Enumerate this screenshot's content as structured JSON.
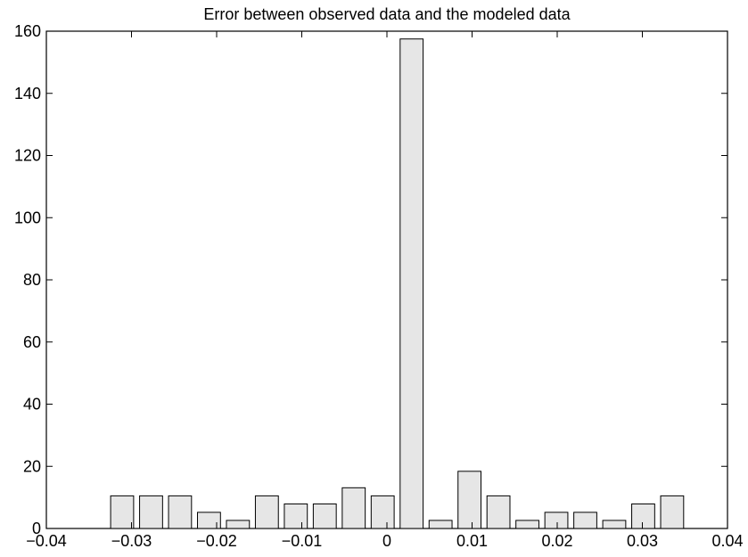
{
  "chart_data": {
    "type": "bar",
    "title": "Error between observed data and the modeled data",
    "xlabel": "",
    "ylabel": "",
    "xlim": [
      -0.04,
      0.04
    ],
    "ylim": [
      0,
      160
    ],
    "x_ticks": [
      -0.04,
      -0.03,
      -0.02,
      -0.01,
      0,
      0.01,
      0.02,
      0.03,
      0.04
    ],
    "x_tick_labels": [
      "−0.04",
      "−0.03",
      "−0.02",
      "−0.01",
      "0",
      "0.01",
      "0.02",
      "0.03",
      "0.04"
    ],
    "y_ticks": [
      0,
      20,
      40,
      60,
      80,
      100,
      120,
      140,
      160
    ],
    "y_tick_labels": [
      "0",
      "20",
      "40",
      "60",
      "80",
      "100",
      "120",
      "140",
      "160"
    ],
    "bar_centers": [
      -0.0311,
      -0.0277,
      -0.0243,
      -0.0209,
      -0.0175,
      -0.0141,
      -0.0107,
      -0.0073,
      -0.0039,
      -0.0005,
      0.0029,
      0.0063,
      0.0097,
      0.0131,
      0.0165,
      0.0199,
      0.0233,
      0.0267,
      0.0301,
      0.0335
    ],
    "values": [
      10.5,
      10.5,
      10.5,
      5.2,
      2.6,
      10.5,
      7.9,
      7.9,
      13.1,
      10.5,
      157.5,
      2.6,
      18.4,
      10.5,
      2.6,
      5.2,
      5.2,
      2.6,
      7.9,
      10.5
    ],
    "bar_width": 0.0027,
    "grid": false,
    "colors": {
      "bar_fill": "#e6e6e6",
      "bar_stroke": "#000000",
      "axes": "#000000",
      "background": "#ffffff"
    }
  }
}
